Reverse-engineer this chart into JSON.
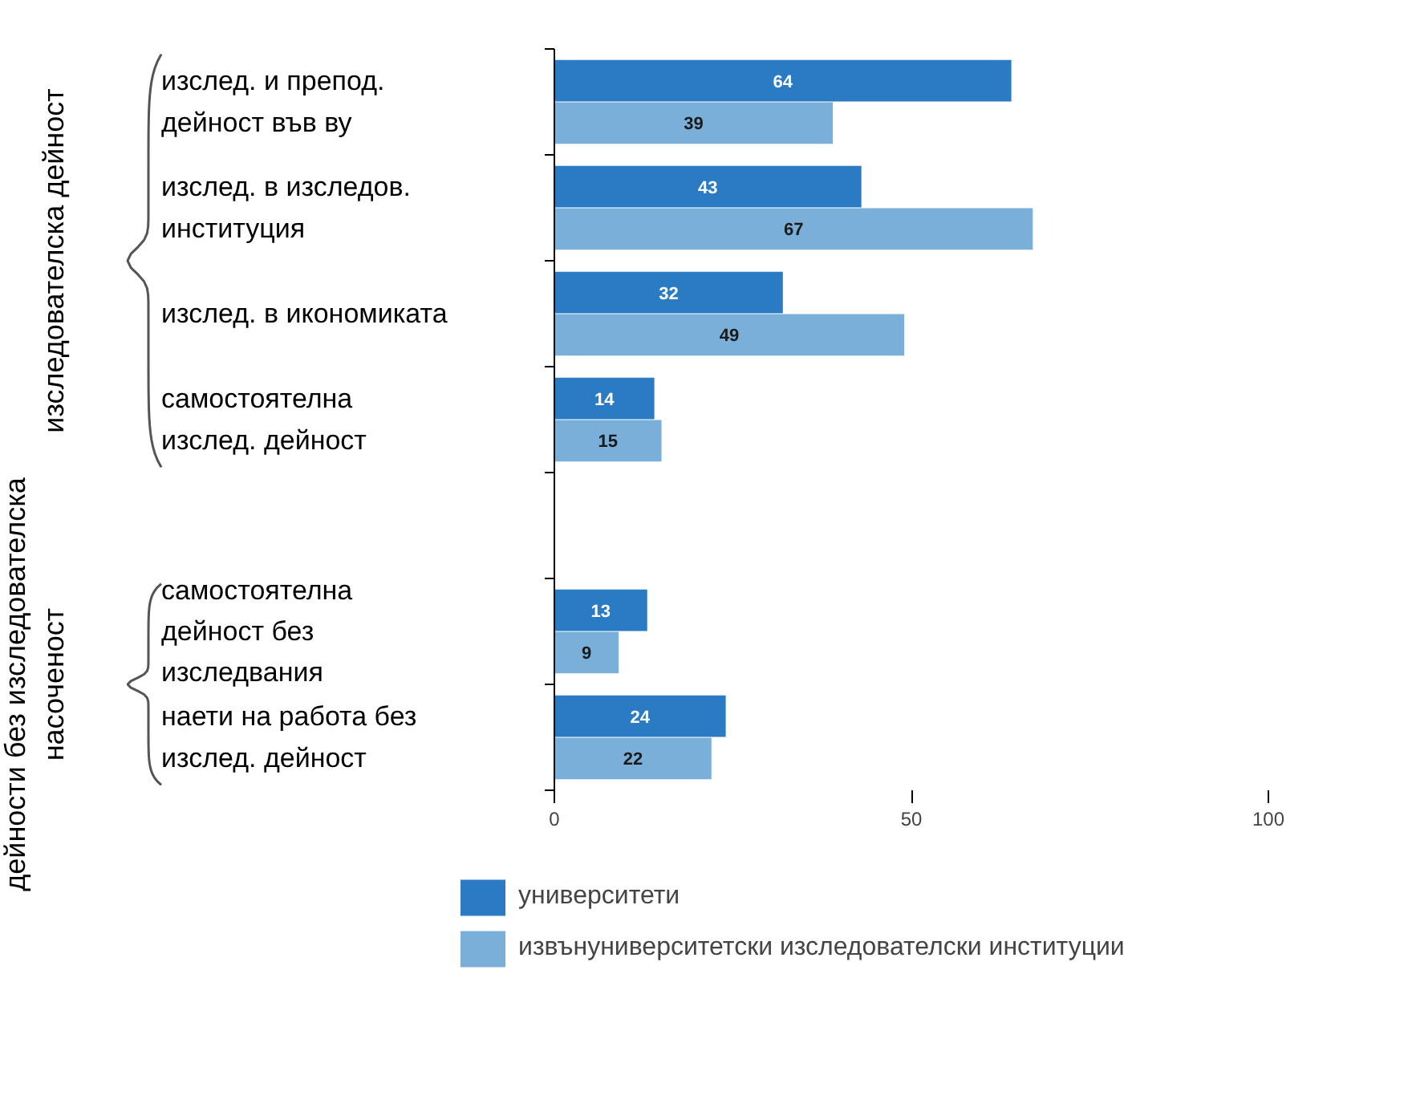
{
  "chart_data": {
    "type": "bar",
    "orientation": "horizontal",
    "categories": [
      "изслед. и препод.\nдейност във ву",
      "изслед. в изследов.\nинституция",
      "изслед. в икономиката",
      "самостоятелна\nизслед. дейност",
      null,
      "самостоятелна\nдейност без\nизследвания",
      "наети на работа без\nизслед. дейност"
    ],
    "series": [
      {
        "name": "университети",
        "color": "#2b7bc4",
        "values": [
          64,
          43,
          32,
          14,
          null,
          13,
          24
        ]
      },
      {
        "name": "извънуниверситетски изследователски институции",
        "color": "#7aafda",
        "values": [
          39,
          67,
          49,
          15,
          null,
          9,
          22
        ]
      }
    ],
    "xlim": [
      0,
      100
    ],
    "xticks": [
      0,
      50,
      100
    ],
    "grid": false,
    "legend": "bottom",
    "data_labels": true,
    "annotations": [
      "изследователска дейност",
      "дейности без изследователска\nнасоченост"
    ]
  }
}
